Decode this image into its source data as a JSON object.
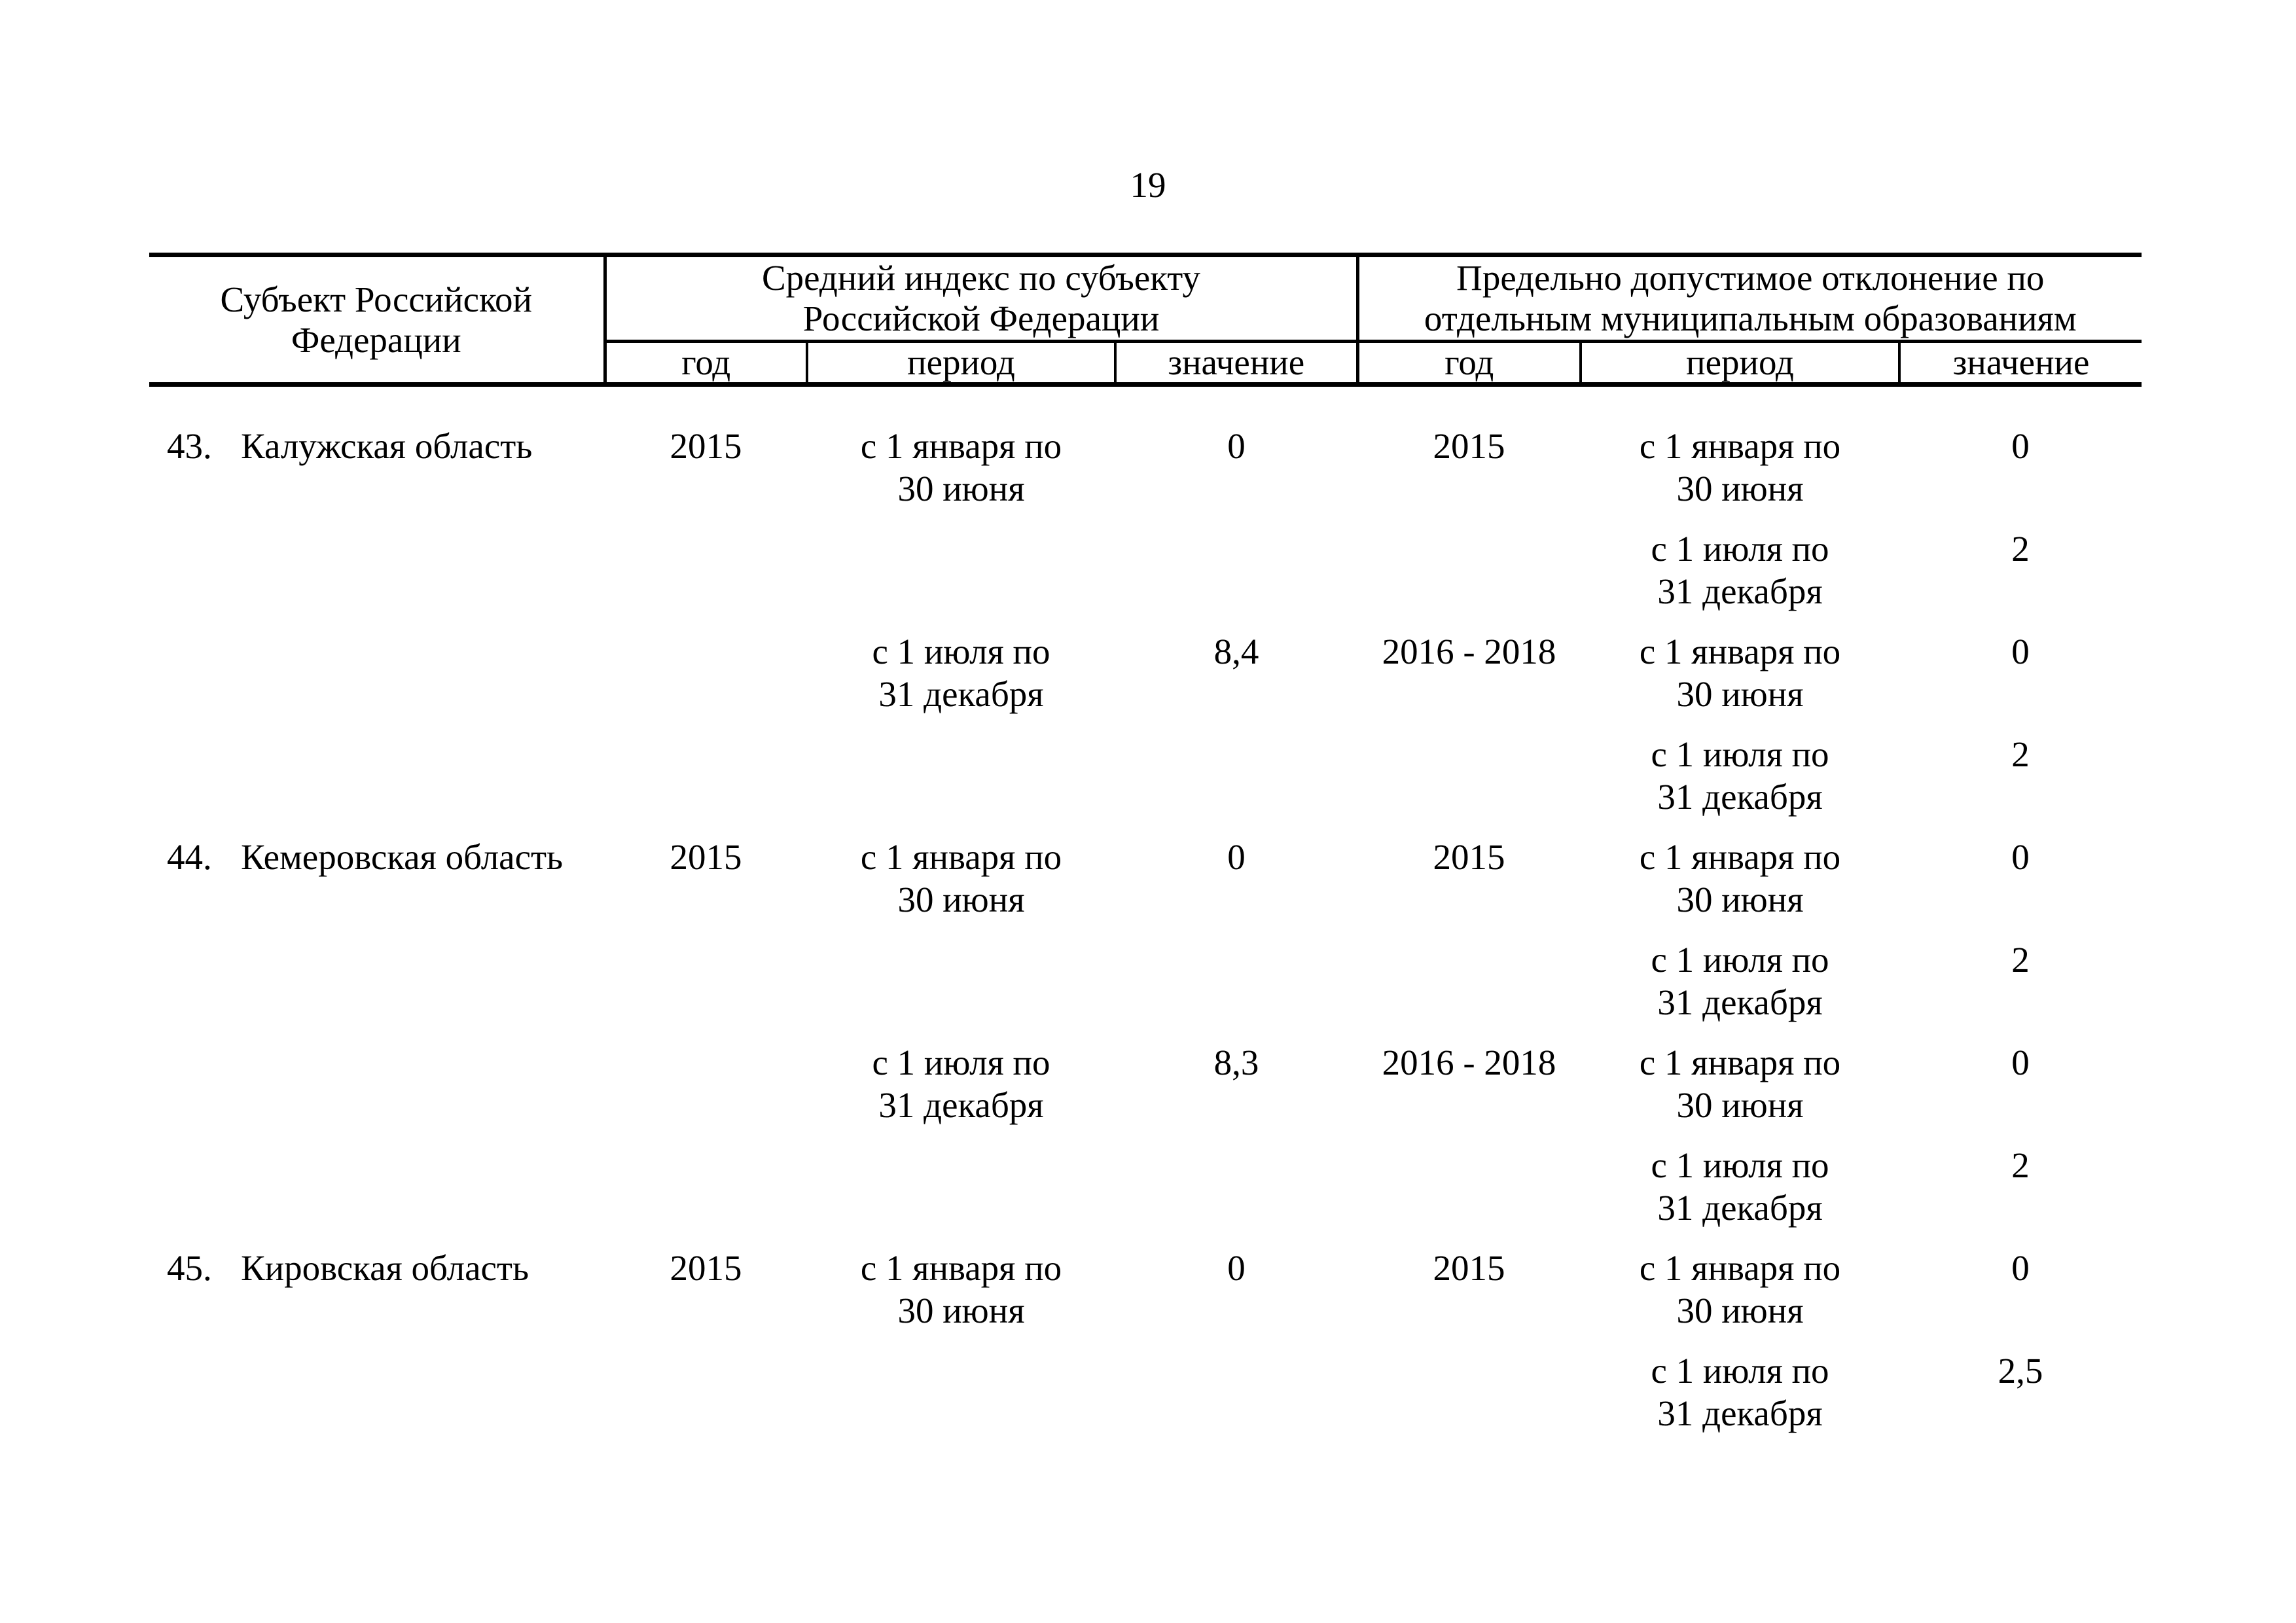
{
  "colors": {
    "ink": "#000000",
    "paper": "#ffffff"
  },
  "page": {
    "number": "19"
  },
  "table": {
    "header": {
      "subject": [
        "Субъект Российской",
        "Федерации"
      ],
      "group_avg": [
        "Средний индекс по субъекту",
        "Российской Федерации"
      ],
      "group_dev": [
        "Предельно допустимое отклонение по",
        "отдельным муниципальным образованиям"
      ],
      "sub": [
        "год",
        "период",
        "значение",
        "год",
        "период",
        "значение"
      ]
    },
    "blocks": [
      {
        "num": "43.",
        "subject": "Калужская область",
        "avg": {
          "year": "2015",
          "period": [
            "с 1 января по",
            "30 июня"
          ],
          "value": "0"
        },
        "dev": {
          "year": "2015",
          "period": [
            "с 1 января по",
            "30 июня"
          ],
          "value": "0"
        }
      },
      {
        "dev": {
          "period": [
            "с 1 июля по",
            "31 декабря"
          ],
          "value": "2"
        }
      },
      {
        "avg": {
          "period": [
            "с 1 июля по",
            "31 декабря"
          ],
          "value": "8,4"
        },
        "dev": {
          "year": "2016 - 2018",
          "period": [
            "с 1 января по",
            "30 июня"
          ],
          "value": "0"
        }
      },
      {
        "dev": {
          "period": [
            "с 1 июля по",
            "31 декабря"
          ],
          "value": "2"
        }
      },
      {
        "num": "44.",
        "subject": "Кемеровская область",
        "avg": {
          "year": "2015",
          "period": [
            "с 1 января по",
            "30 июня"
          ],
          "value": "0"
        },
        "dev": {
          "year": "2015",
          "period": [
            "с 1 января по",
            "30 июня"
          ],
          "value": "0"
        }
      },
      {
        "dev": {
          "period": [
            "с 1 июля по",
            "31 декабря"
          ],
          "value": "2"
        }
      },
      {
        "avg": {
          "period": [
            "с 1 июля по",
            "31 декабря"
          ],
          "value": "8,3"
        },
        "dev": {
          "year": "2016 - 2018",
          "period": [
            "с 1 января по",
            "30 июня"
          ],
          "value": "0"
        }
      },
      {
        "dev": {
          "period": [
            "с 1 июля по",
            "31 декабря"
          ],
          "value": "2"
        }
      },
      {
        "num": "45.",
        "subject": "Кировская область",
        "avg": {
          "year": "2015",
          "period": [
            "с 1 января по",
            "30 июня"
          ],
          "value": "0"
        },
        "dev": {
          "year": "2015",
          "period": [
            "с 1 января по",
            "30 июня"
          ],
          "value": "0"
        }
      },
      {
        "dev": {
          "period": [
            "с 1 июля по",
            "31 декабря"
          ],
          "value": "2,5"
        }
      }
    ]
  }
}
